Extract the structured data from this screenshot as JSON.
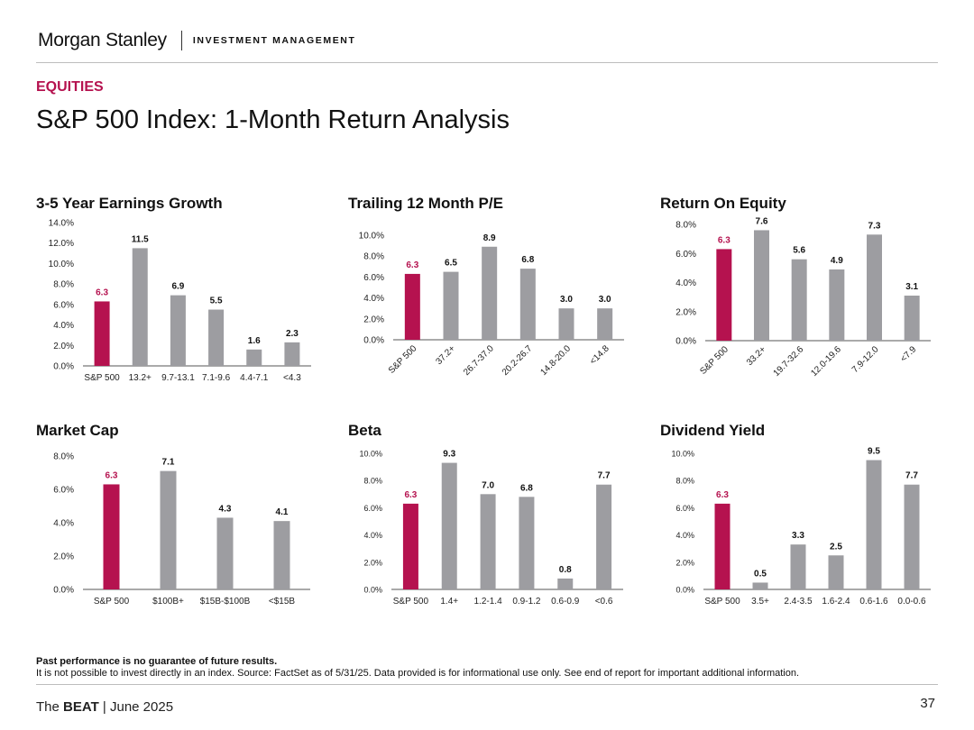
{
  "header": {
    "brand": "Morgan Stanley",
    "separator": "|",
    "unit": "INVESTMENT MANAGEMENT"
  },
  "section_label": "EQUITIES",
  "page_title": "S&P 500 Index: 1-Month Return Analysis",
  "colors": {
    "highlight": "#b5124f",
    "bar": "#9d9da1",
    "axis": "#555555",
    "section": "#b5124f"
  },
  "chart_data": [
    {
      "type": "bar",
      "title": "3-5 Year Earnings Growth",
      "categories": [
        "S&P 500",
        "13.2+",
        "9.7-13.1",
        "7.1-9.6",
        "4.4-7.1",
        "<4.3"
      ],
      "values": [
        6.3,
        11.5,
        6.9,
        5.5,
        1.6,
        2.3
      ],
      "value_labels": [
        "6.3",
        "11.5",
        "6.9",
        "5.5",
        "1.6",
        "2.3"
      ],
      "y_ticks": [
        "0.0%",
        "2.0%",
        "4.0%",
        "6.0%",
        "8.0%",
        "10.0%",
        "12.0%",
        "14.0%"
      ],
      "ylim": [
        0,
        14
      ],
      "highlight_index": 0,
      "rotated_labels": false
    },
    {
      "type": "bar",
      "title": "Trailing 12 Month P/E",
      "categories": [
        "S&P 500",
        "37.2+",
        "26.7-37.0",
        "20.2-26.7",
        "14.8-20.0",
        "<14.8"
      ],
      "values": [
        6.3,
        6.5,
        8.9,
        6.8,
        3.0,
        3.0
      ],
      "value_labels": [
        "6.3",
        "6.5",
        "8.9",
        "6.8",
        "3.0",
        "3.0"
      ],
      "y_ticks": [
        "0.0%",
        "2.0%",
        "4.0%",
        "6.0%",
        "8.0%",
        "10.0%"
      ],
      "ylim": [
        0,
        10
      ],
      "highlight_index": 0,
      "rotated_labels": true
    },
    {
      "type": "bar",
      "title": "Return On Equity",
      "categories": [
        "S&P 500",
        "33.2+",
        "19.7-32.6",
        "12.0-19.6",
        "7.9-12.0",
        "<7.9"
      ],
      "values": [
        6.3,
        7.6,
        5.6,
        4.9,
        7.3,
        3.1
      ],
      "value_labels": [
        "6.3",
        "7.6",
        "5.6",
        "4.9",
        "7.3",
        "3.1"
      ],
      "y_ticks": [
        "0.0%",
        "2.0%",
        "4.0%",
        "6.0%",
        "8.0%"
      ],
      "ylim": [
        0,
        8
      ],
      "highlight_index": 0,
      "rotated_labels": true
    },
    {
      "type": "bar",
      "title": "Market Cap",
      "categories": [
        "S&P 500",
        "$100B+",
        "$15B-$100B",
        "<$15B"
      ],
      "values": [
        6.3,
        7.1,
        4.3,
        4.1
      ],
      "value_labels": [
        "6.3",
        "7.1",
        "4.3",
        "4.1"
      ],
      "y_ticks": [
        "0.0%",
        "2.0%",
        "4.0%",
        "6.0%",
        "8.0%"
      ],
      "ylim": [
        0,
        8
      ],
      "highlight_index": 0,
      "rotated_labels": false
    },
    {
      "type": "bar",
      "title": "Beta",
      "categories": [
        "S&P 500",
        "1.4+",
        "1.2-1.4",
        "0.9-1.2",
        "0.6-0.9",
        "<0.6"
      ],
      "values": [
        6.3,
        9.3,
        7.0,
        6.8,
        0.8,
        7.7
      ],
      "value_labels": [
        "6.3",
        "9.3",
        "7.0",
        "6.8",
        "0.8",
        "7.7"
      ],
      "y_ticks": [
        "0.0%",
        "2.0%",
        "4.0%",
        "6.0%",
        "8.0%",
        "10.0%"
      ],
      "ylim": [
        0,
        10
      ],
      "highlight_index": 0,
      "rotated_labels": false
    },
    {
      "type": "bar",
      "title": "Dividend Yield",
      "categories": [
        "S&P 500",
        "3.5+",
        "2.4-3.5",
        "1.6-2.4",
        "0.6-1.6",
        "0.0-0.6"
      ],
      "values": [
        6.3,
        0.5,
        3.3,
        2.5,
        9.5,
        7.7
      ],
      "value_labels": [
        "6.3",
        "0.5",
        "3.3",
        "2.5",
        "9.5",
        "7.7"
      ],
      "y_ticks": [
        "0.0%",
        "2.0%",
        "4.0%",
        "6.0%",
        "8.0%",
        "10.0%"
      ],
      "ylim": [
        0,
        10
      ],
      "highlight_index": 0,
      "rotated_labels": false
    }
  ],
  "footnote": {
    "bold_line": "Past performance is no guarantee of future results.",
    "line": "It is not possible to invest directly in an index. Source: FactSet as of 5/31/25. Data provided is for informational use only. See end of report for important additional information."
  },
  "footer": {
    "prefix": "The ",
    "bold": "BEAT",
    "suffix": " | June 2025",
    "page_number": "37"
  }
}
